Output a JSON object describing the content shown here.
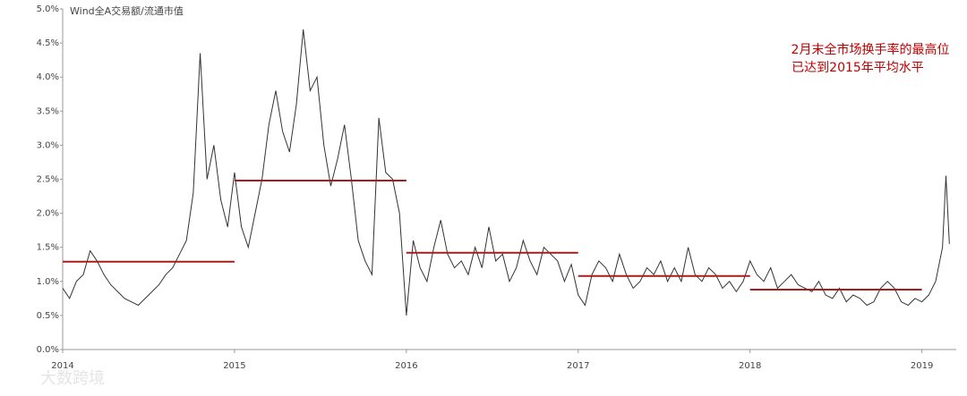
{
  "chart_data": {
    "type": "line",
    "title": "Wind全A交易额/流通市值",
    "annotation": [
      "2月末全市场换手率的最高位",
      "已达到2015年平均水平"
    ],
    "watermark": "大数跨境",
    "xlim": [
      2014,
      2019.2
    ],
    "xticks": [
      2014,
      2015,
      2016,
      2017,
      2018,
      2019
    ],
    "ylim": [
      0,
      5
    ],
    "yticks": [
      {
        "value": 0,
        "label": "0.0%"
      },
      {
        "value": 0.5,
        "label": "0.5%"
      },
      {
        "value": 1,
        "label": "1.0%"
      },
      {
        "value": 1.5,
        "label": "1.5%"
      },
      {
        "value": 2,
        "label": "2.0%"
      },
      {
        "value": 2.5,
        "label": "2.5%"
      },
      {
        "value": 3,
        "label": "3.0%"
      },
      {
        "value": 3.5,
        "label": "3.5%"
      },
      {
        "value": 4,
        "label": "4.0%"
      },
      {
        "value": 4.5,
        "label": "4.5%"
      },
      {
        "value": 5,
        "label": "5.0%"
      }
    ],
    "series": [
      {
        "color": "#333333",
        "x": [
          2014.0,
          2014.04,
          2014.08,
          2014.12,
          2014.16,
          2014.2,
          2014.24,
          2014.28,
          2014.32,
          2014.36,
          2014.4,
          2014.44,
          2014.48,
          2014.52,
          2014.56,
          2014.6,
          2014.64,
          2014.68,
          2014.72,
          2014.76,
          2014.8,
          2014.84,
          2014.88,
          2014.92,
          2014.96,
          2015.0,
          2015.04,
          2015.08,
          2015.12,
          2015.16,
          2015.2,
          2015.24,
          2015.28,
          2015.32,
          2015.36,
          2015.4,
          2015.44,
          2015.48,
          2015.52,
          2015.56,
          2015.6,
          2015.64,
          2015.68,
          2015.72,
          2015.76,
          2015.8,
          2015.84,
          2015.88,
          2015.92,
          2015.96,
          2016.0,
          2016.04,
          2016.08,
          2016.12,
          2016.16,
          2016.2,
          2016.24,
          2016.28,
          2016.32,
          2016.36,
          2016.4,
          2016.44,
          2016.48,
          2016.52,
          2016.56,
          2016.6,
          2016.64,
          2016.68,
          2016.72,
          2016.76,
          2016.8,
          2016.84,
          2016.88,
          2016.92,
          2016.96,
          2017.0,
          2017.04,
          2017.08,
          2017.12,
          2017.16,
          2017.2,
          2017.24,
          2017.28,
          2017.32,
          2017.36,
          2017.4,
          2017.44,
          2017.48,
          2017.52,
          2017.56,
          2017.6,
          2017.64,
          2017.68,
          2017.72,
          2017.76,
          2017.8,
          2017.84,
          2017.88,
          2017.92,
          2017.96,
          2018.0,
          2018.04,
          2018.08,
          2018.12,
          2018.16,
          2018.2,
          2018.24,
          2018.28,
          2018.32,
          2018.36,
          2018.4,
          2018.44,
          2018.48,
          2018.52,
          2018.56,
          2018.6,
          2018.64,
          2018.68,
          2018.72,
          2018.76,
          2018.8,
          2018.84,
          2018.88,
          2018.92,
          2018.96,
          2019.0,
          2019.04,
          2019.08,
          2019.12,
          2019.14,
          2019.16
        ],
        "values": [
          0.9,
          0.75,
          1.0,
          1.1,
          1.45,
          1.3,
          1.1,
          0.95,
          0.85,
          0.75,
          0.7,
          0.65,
          0.75,
          0.85,
          0.95,
          1.1,
          1.2,
          1.4,
          1.6,
          2.3,
          4.35,
          2.5,
          3.0,
          2.2,
          1.8,
          2.6,
          1.8,
          1.5,
          2.0,
          2.5,
          3.3,
          3.8,
          3.2,
          2.9,
          3.6,
          4.7,
          3.8,
          4.0,
          3.0,
          2.4,
          2.8,
          3.3,
          2.5,
          1.6,
          1.3,
          1.1,
          3.4,
          2.6,
          2.5,
          2.0,
          0.5,
          1.6,
          1.2,
          1.0,
          1.5,
          1.9,
          1.4,
          1.2,
          1.3,
          1.1,
          1.5,
          1.2,
          1.8,
          1.3,
          1.4,
          1.0,
          1.2,
          1.6,
          1.3,
          1.1,
          1.5,
          1.4,
          1.3,
          1.0,
          1.25,
          0.8,
          0.65,
          1.1,
          1.3,
          1.2,
          1.0,
          1.4,
          1.1,
          0.9,
          1.0,
          1.2,
          1.1,
          1.3,
          1.0,
          1.2,
          1.0,
          1.5,
          1.1,
          1.0,
          1.2,
          1.1,
          0.9,
          1.0,
          0.85,
          1.0,
          1.3,
          1.1,
          1.0,
          1.2,
          0.9,
          1.0,
          1.1,
          0.95,
          0.9,
          0.85,
          1.0,
          0.8,
          0.75,
          0.9,
          0.7,
          0.8,
          0.75,
          0.65,
          0.7,
          0.9,
          1.0,
          0.9,
          0.7,
          0.65,
          0.75,
          0.7,
          0.8,
          1.0,
          1.5,
          2.55,
          1.55
        ]
      }
    ],
    "averages": {
      "color": "#a31f1f",
      "x_start": [
        2014,
        2015,
        2016,
        2017,
        2018
      ],
      "x_end": [
        2015,
        2016,
        2017,
        2018,
        2019
      ],
      "values": [
        1.29,
        2.48,
        1.42,
        1.08,
        0.88
      ]
    }
  }
}
